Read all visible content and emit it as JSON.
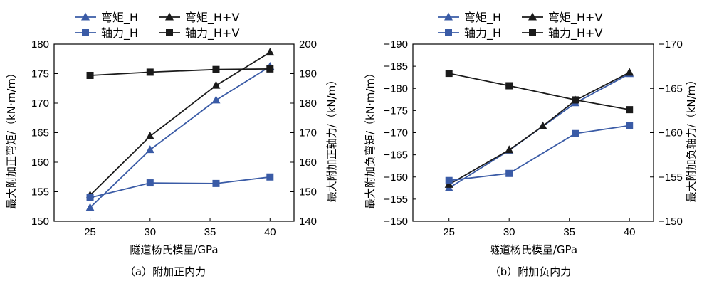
{
  "colors": {
    "h": "#3a5ba6",
    "hv": "#1a1a1a",
    "axis": "#000000"
  },
  "chart_data": [
    {
      "type": "line",
      "caption": "（a）附加正内力",
      "xlabel": "隧道杨氏模量/GPa",
      "ylabel_left": "最大附加正弯矩/（kN·m/m）",
      "ylabel_right": "最大附加正轴力/（kN/m）",
      "x_ticks": [
        25,
        30,
        35,
        40
      ],
      "xlim": [
        22,
        42
      ],
      "ylim_left": [
        150,
        180
      ],
      "yticks_left": [
        150,
        155,
        160,
        165,
        170,
        175,
        180
      ],
      "ylim_right": [
        140,
        200
      ],
      "yticks_right": [
        140,
        150,
        160,
        170,
        180,
        190,
        200
      ],
      "series": [
        {
          "name": "弯矩_H",
          "axis": "left",
          "marker": "triangle",
          "color": "#3a5ba6",
          "x": [
            25,
            30,
            35.5,
            40
          ],
          "y": [
            152.3,
            162.1,
            170.5,
            176.2
          ]
        },
        {
          "name": "弯矩_H+V",
          "axis": "left",
          "marker": "triangle",
          "color": "#1a1a1a",
          "x": [
            25,
            30,
            35.5,
            40
          ],
          "y": [
            154.4,
            164.4,
            173.0,
            178.6
          ]
        },
        {
          "name": "轴力_H",
          "axis": "right",
          "marker": "square",
          "color": "#3a5ba6",
          "x": [
            25,
            30,
            35.5,
            40
          ],
          "y": [
            148.0,
            153.0,
            152.8,
            155.0
          ]
        },
        {
          "name": "轴力_H+V",
          "axis": "right",
          "marker": "square",
          "color": "#1a1a1a",
          "x": [
            25,
            30,
            35.5,
            40
          ],
          "y": [
            189.4,
            190.5,
            191.4,
            191.6
          ]
        }
      ]
    },
    {
      "type": "line",
      "caption": "（b）附加负内力",
      "xlabel": "隧道杨氏模量/GPa",
      "ylabel_left": "最大附加负弯矩/（kN·m/m）",
      "ylabel_right": "最大附加负轴力/（kN/m）",
      "x_ticks": [
        25,
        30,
        35,
        40
      ],
      "xlim": [
        22,
        42
      ],
      "ylim_left": [
        -150,
        -190
      ],
      "yticks_left": [
        -150,
        -155,
        -160,
        -165,
        -170,
        -175,
        -180,
        -185,
        -190
      ],
      "ylim_right": [
        -150,
        -170
      ],
      "yticks_right": [
        -150,
        -155,
        -160,
        -165,
        -170
      ],
      "series": [
        {
          "name": "弯矩_H",
          "axis": "left",
          "marker": "triangle",
          "color": "#3a5ba6",
          "x": [
            25,
            30,
            35.5,
            40
          ],
          "y": [
            -157.5,
            -166.0,
            -176.7,
            -183.3
          ]
        },
        {
          "name": "弯矩_H+V",
          "axis": "left",
          "marker": "triangle",
          "color": "#1a1a1a",
          "x": [
            25,
            30,
            32.8,
            35.5,
            40
          ],
          "y": [
            -158.3,
            -166.1,
            -171.5,
            -177.3,
            -183.6
          ]
        },
        {
          "name": "轴力_H",
          "axis": "right",
          "marker": "square",
          "color": "#3a5ba6",
          "x": [
            25,
            30,
            35.5,
            40
          ],
          "y": [
            -154.6,
            -155.4,
            -159.9,
            -160.8
          ]
        },
        {
          "name": "轴力_H+V",
          "axis": "right",
          "marker": "square",
          "color": "#1a1a1a",
          "x": [
            25,
            30,
            35.5,
            40
          ],
          "y": [
            -166.7,
            -165.3,
            -163.7,
            -162.6
          ]
        }
      ]
    }
  ]
}
